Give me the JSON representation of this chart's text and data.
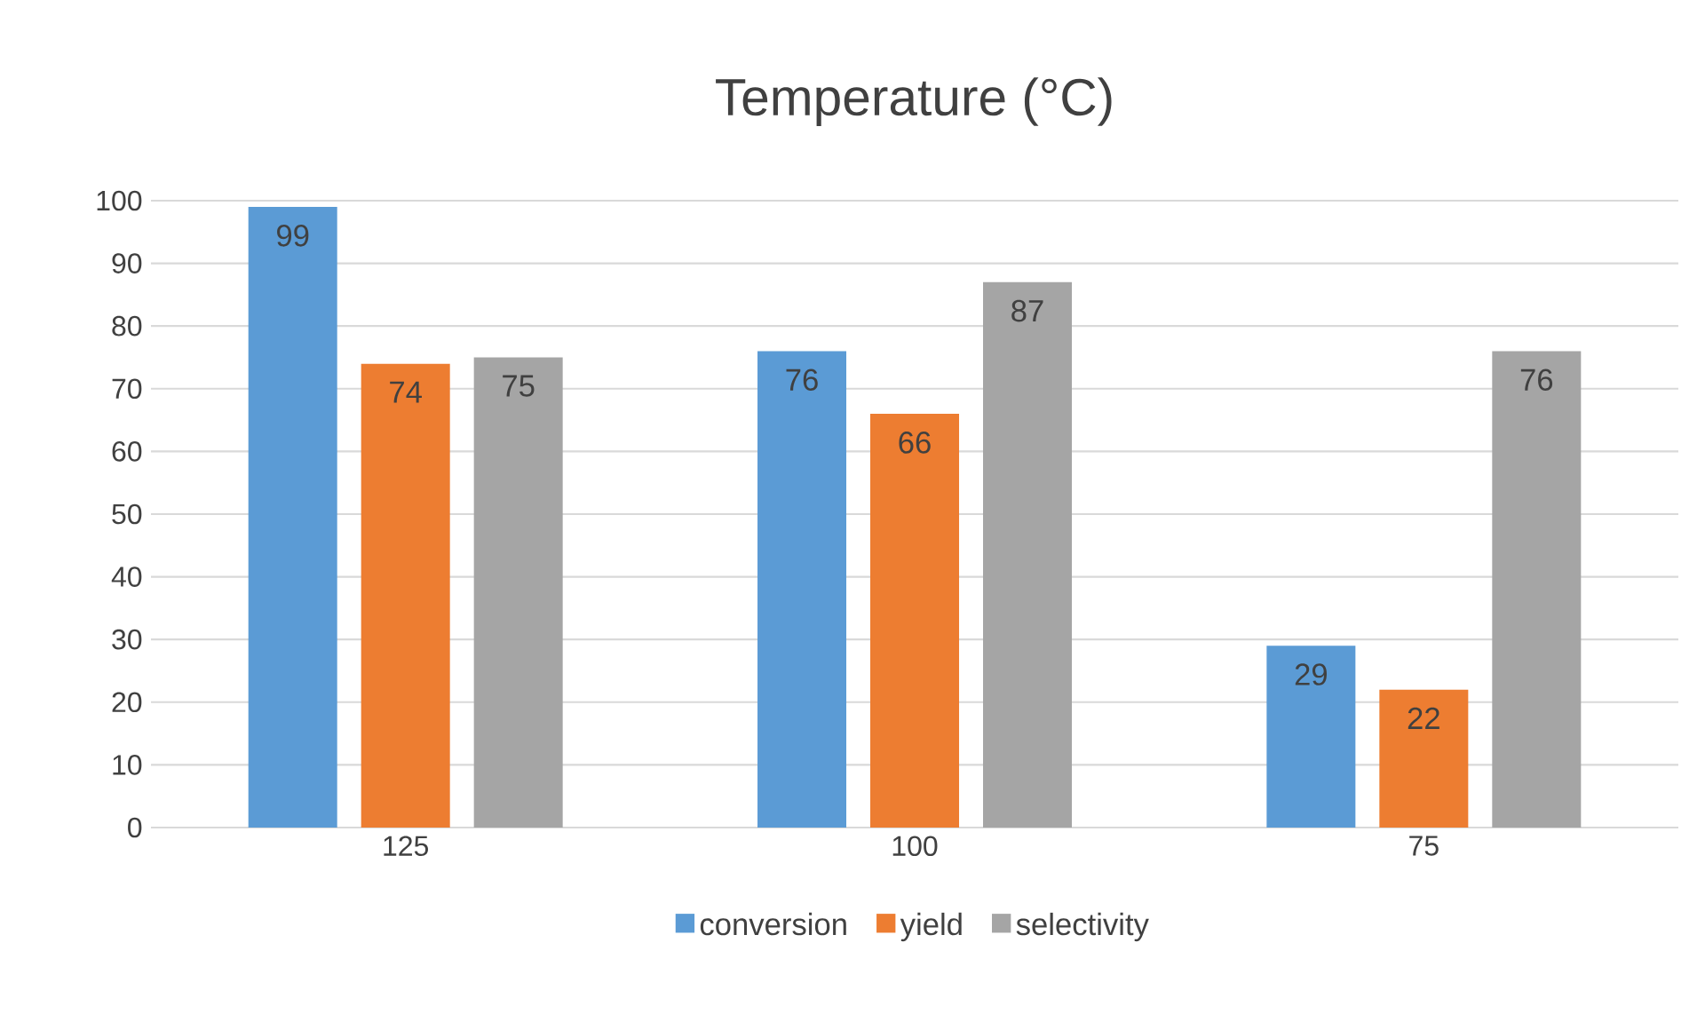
{
  "chart_data": {
    "type": "bar",
    "title": "Temperature (°C)",
    "categories": [
      "125",
      "100",
      "75"
    ],
    "series": [
      {
        "name": "conversion",
        "color": "#5b9bd5",
        "values": [
          99,
          76,
          29
        ]
      },
      {
        "name": "yield",
        "color": "#ed7d31",
        "values": [
          74,
          66,
          22
        ]
      },
      {
        "name": "selectivity",
        "color": "#a5a5a5",
        "values": [
          75,
          87,
          76
        ]
      }
    ],
    "ylim": [
      0,
      100
    ],
    "yticks": [
      0,
      10,
      20,
      30,
      40,
      50,
      60,
      70,
      80,
      90,
      100
    ],
    "grid": "y",
    "legend": "bottom",
    "data_labels": true
  }
}
